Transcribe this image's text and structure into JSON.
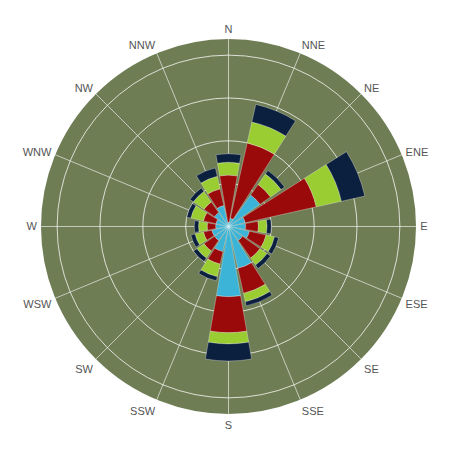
{
  "chart_data": {
    "type": "barpolar",
    "categories": [
      "N",
      "NNE",
      "NE",
      "ENE",
      "E",
      "ESE",
      "SE",
      "SSE",
      "S",
      "SSW",
      "SW",
      "WSW",
      "W",
      "WNW",
      "NW",
      "NNW"
    ],
    "series": [
      {
        "color": "#3bb4d8",
        "values": [
          0.5,
          1.0,
          4.5,
          2.0,
          2.0,
          2.5,
          2.0,
          5.0,
          8.2,
          3.0,
          2.0,
          2.0,
          1.5,
          1.5,
          2.0,
          2.5
        ]
      },
      {
        "color": "#9b0a0a",
        "values": [
          5.5,
          9.0,
          1.5,
          8.5,
          1.5,
          2.0,
          2.5,
          3.0,
          4.2,
          1.5,
          1.5,
          1.0,
          1.0,
          1.5,
          1.5,
          2.0
        ]
      },
      {
        "color": "#9acd32",
        "values": [
          1.5,
          2.5,
          1.5,
          3.0,
          1.0,
          1.0,
          1.0,
          1.0,
          1.3,
          1.5,
          1.0,
          1.0,
          1.0,
          1.5,
          1.5,
          1.5
        ]
      },
      {
        "color": "#0b1f3f",
        "values": [
          1.0,
          2.1,
          0.5,
          2.8,
          0.5,
          0.5,
          0.5,
          0.5,
          2.0,
          0.5,
          0.5,
          0.5,
          0.5,
          0.5,
          0.5,
          1.0
        ]
      }
    ],
    "ylim": [
      0,
      22
    ],
    "yticks": [
      5,
      10,
      15,
      20
    ],
    "stacked": true,
    "grid": true,
    "tick_labels": "x"
  }
}
